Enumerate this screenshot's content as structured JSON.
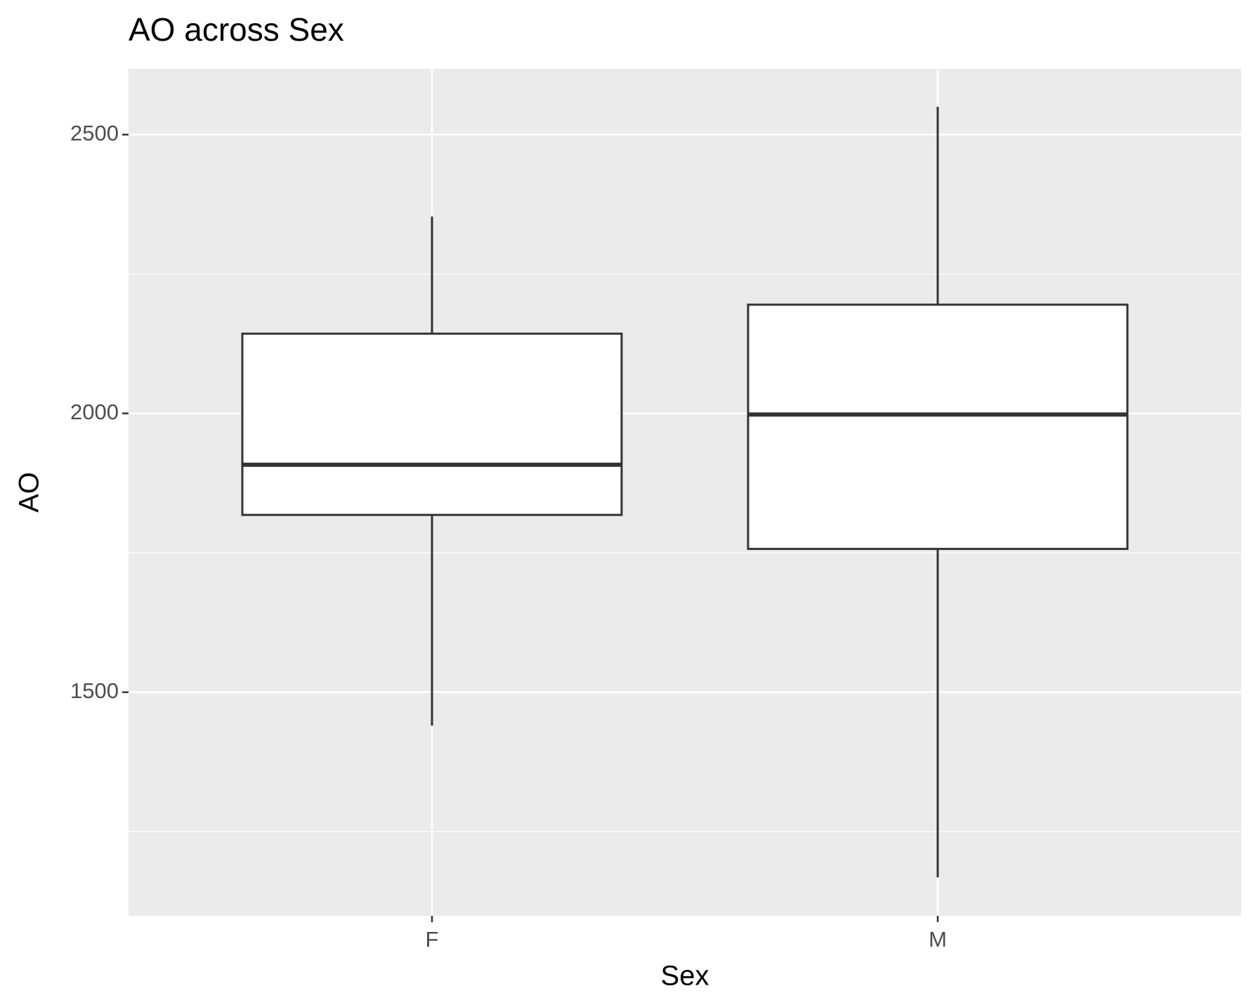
{
  "chart_data": {
    "type": "box",
    "title": "AO across Sex",
    "x_label": "Sex",
    "y_label": "AO",
    "categories": [
      "F",
      "M"
    ],
    "boxes": [
      {
        "whislo": 1440,
        "q1": 1818,
        "median": 1908,
        "q3": 2143,
        "whishi": 2353
      },
      {
        "whislo": 1168,
        "q1": 1757,
        "median": 1998,
        "q3": 2195,
        "whishi": 2550
      }
    ],
    "color": "#333333",
    "fill": "#ffffff",
    "ylim": [
      1099,
      2618
    ],
    "yticks": [
      1500,
      2000,
      2500
    ],
    "minor_yticks": [
      1250,
      1750,
      2250
    ],
    "grid": true
  }
}
